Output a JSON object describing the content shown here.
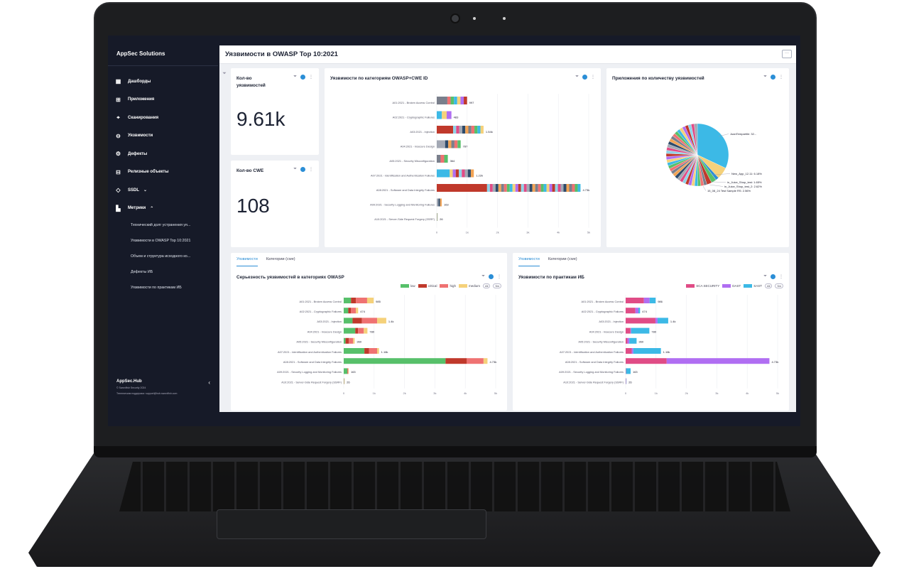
{
  "app": {
    "brand": "AppSec Solutions"
  },
  "sidebar": {
    "items": [
      {
        "label": "Дашборды",
        "icon": "dashboard-icon"
      },
      {
        "label": "Приложения",
        "icon": "apps-icon"
      },
      {
        "label": "Сканирования",
        "icon": "scan-icon"
      },
      {
        "label": "Уязвимости",
        "icon": "bug-icon"
      },
      {
        "label": "Дефекты",
        "icon": "gear-icon"
      },
      {
        "label": "Релизные объекты",
        "icon": "release-icon"
      },
      {
        "label": "SSDL",
        "icon": "shield-icon",
        "chevron": "⌄"
      },
      {
        "label": "Метрики",
        "icon": "metrics-icon",
        "chevron": "⌃"
      }
    ],
    "subitems": [
      "Технический долг устранения уя...",
      "Уязвимости в OWASP Top 10:2021",
      "Объем и структура исходного ко...",
      "Дефекты ИБ",
      "Уязвимости по практикам ИБ"
    ],
    "footer": {
      "title": "AppSec.Hub",
      "copyright": "© Swordfish Security 2024",
      "support": "Техническая поддержка: support@hub.swordfish.com"
    }
  },
  "page": {
    "title": "Уязвимости в OWASP Top 10:2021",
    "menu_label": "···"
  },
  "kpi": [
    {
      "title": "Кол-во уязвимостей",
      "value": "9.61k"
    },
    {
      "title": "Кол-во CWE",
      "value": "108"
    }
  ],
  "categories": [
    "A01:2021 - Broken Access Control",
    "A02:2021 - Cryptographic Failures",
    "A03:2021 - Injection",
    "A04:2021 - Insecure Design",
    "A05:2021 - Security Misconfiguration",
    "A07:2021 - Identification and Authentication Failures",
    "A08:2021 - Software and Data Integrity Failures",
    "A09:2021 - Security Logging and Monitoring Failures",
    "A10:2021 - Server-Side Request Forgery (SSRF)"
  ],
  "ticks": [
    "0",
    "1k",
    "2k",
    "3k",
    "4k",
    "5k"
  ],
  "colors": {
    "low": "#57c06a",
    "critical": "#c0392b",
    "high": "#ef7272",
    "medium": "#f5d17a",
    "sca": "#e04c86",
    "dast": "#b06ef2",
    "sast": "#3cb9e6",
    "accent": "#2b8ed6"
  },
  "chart_data": [
    {
      "type": "bar",
      "title": "Уязвимости по категориям OWASP+CWE ID",
      "categories": [
        "A01:2021 - Broken Access Control",
        "A02:2021 - Cryptographic Failures",
        "A03:2021 - Injection",
        "A04:2021 - Insecure Design",
        "A05:2021 - Security Misconfiguration",
        "A07:2021 - Identification and Authentication Failures",
        "A08:2021 - Software and Data Integrity Failures",
        "A09:2021 - Security Logging and Monitoring Failures",
        "A10:2021 - Server-Side Request Forgery (SSRF)"
      ],
      "values": [
        997,
        483,
        1540,
        787,
        364,
        1220,
        4730,
        163,
        26
      ],
      "labels": [
        "997",
        "483",
        "1.54k",
        "787",
        "364",
        "1.22k",
        "4.73k",
        "163",
        "26"
      ],
      "xlim": [
        0,
        5000
      ]
    },
    {
      "type": "pie",
      "title": "Приложения по количеству уязвимостей",
      "labels": [
        "JuanTempartile: 32...",
        "New_App_12.11: 6.18%",
        "in_Juice_Shop_test: 1.65%",
        "in_Juice_Shop_test_2: 2.62%",
        "15_08_24 Test Sample RS: 2.56%"
      ],
      "values": [
        32,
        6.18,
        1.65,
        2.62,
        2.56
      ]
    },
    {
      "type": "bar",
      "stacked": true,
      "title": "Серьезность уязвимостей в категориях OWASP",
      "categories": [
        "A01:2021 - Broken Access Control",
        "A02:2021 - Cryptographic Failures",
        "A03:2021 - Injection",
        "A04:2021 - Insecure Design",
        "A05:2021 - Security Misconfiguration",
        "A07:2021 - Identification and Authentication Failures",
        "A08:2021 - Software and Data Integrity Failures",
        "A09:2021 - Security Logging and Monitoring Failures",
        "A10:2021 - Server-Side Request Forgery (SSRF)"
      ],
      "series": [
        {
          "name": "low",
          "values": [
            240,
            150,
            290,
            380,
            60,
            680,
            3350,
            120,
            10
          ]
        },
        {
          "name": "critical",
          "values": [
            160,
            90,
            310,
            90,
            110,
            150,
            700,
            10,
            6
          ]
        },
        {
          "name": "high",
          "values": [
            370,
            160,
            500,
            190,
            140,
            270,
            550,
            20,
            6
          ]
        },
        {
          "name": "medium",
          "values": [
            215,
            74,
            300,
            120,
            50,
            60,
            130,
            13,
            4
          ]
        }
      ],
      "labels": [
        "985",
        "474",
        "1.4k",
        "780",
        "360",
        "1.16k",
        "4.73k",
        "163",
        "26"
      ],
      "xlim": [
        0,
        5000
      ]
    },
    {
      "type": "bar",
      "stacked": true,
      "title": "Уязвимости по практикам ИБ",
      "categories": [
        "A01:2021 - Broken Access Control",
        "A02:2021 - Cryptographic Failures",
        "A03:2021 - Injection",
        "A04:2021 - Insecure Design",
        "A05:2021 - Security Misconfiguration",
        "A07:2021 - Identification and Authentication Failures",
        "A08:2021 - Software and Data Integrity Failures",
        "A09:2021 - Security Logging and Monitoring Failures",
        "A10:2021 - Server-Side Request Forgery (SSRF)"
      ],
      "series": [
        {
          "name": "SCA SECURITY",
          "values": [
            600,
            320,
            980,
            160,
            60,
            200,
            1350,
            10,
            10
          ]
        },
        {
          "name": "DAST",
          "values": [
            190,
            100,
            70,
            20,
            60,
            50,
            3380,
            3,
            6
          ]
        },
        {
          "name": "SAST",
          "values": [
            196,
            54,
            350,
            600,
            240,
            910,
            0,
            150,
            10
          ]
        }
      ],
      "labels": [
        "986",
        "474",
        "1.4k",
        "780",
        "360",
        "1.16k",
        "4.73k",
        "163",
        "26"
      ],
      "xlim": [
        0,
        5000
      ]
    }
  ],
  "widgets": {
    "owasp_cwe": {
      "title": "Уязвимости по категориям OWASP+CWE ID"
    },
    "apps": {
      "title": "Приложения по количеству уязвимостей"
    },
    "severity": {
      "tab1": "Уязвимости",
      "tab2": "Категории (cwe)",
      "title": "Серьезность уязвимостей в категориях OWASP",
      "legend": [
        "low",
        "critical",
        "high",
        "medium"
      ],
      "pill1": "All",
      "pill2": "5m"
    },
    "practices": {
      "tab1": "Уязвимости",
      "tab2": "Категории (cwe)",
      "title": "Уязвимости по практикам ИБ",
      "legend": [
        "SCA SECURITY",
        "DAST",
        "SAST"
      ],
      "pill1": "All",
      "pill2": "5m"
    }
  }
}
